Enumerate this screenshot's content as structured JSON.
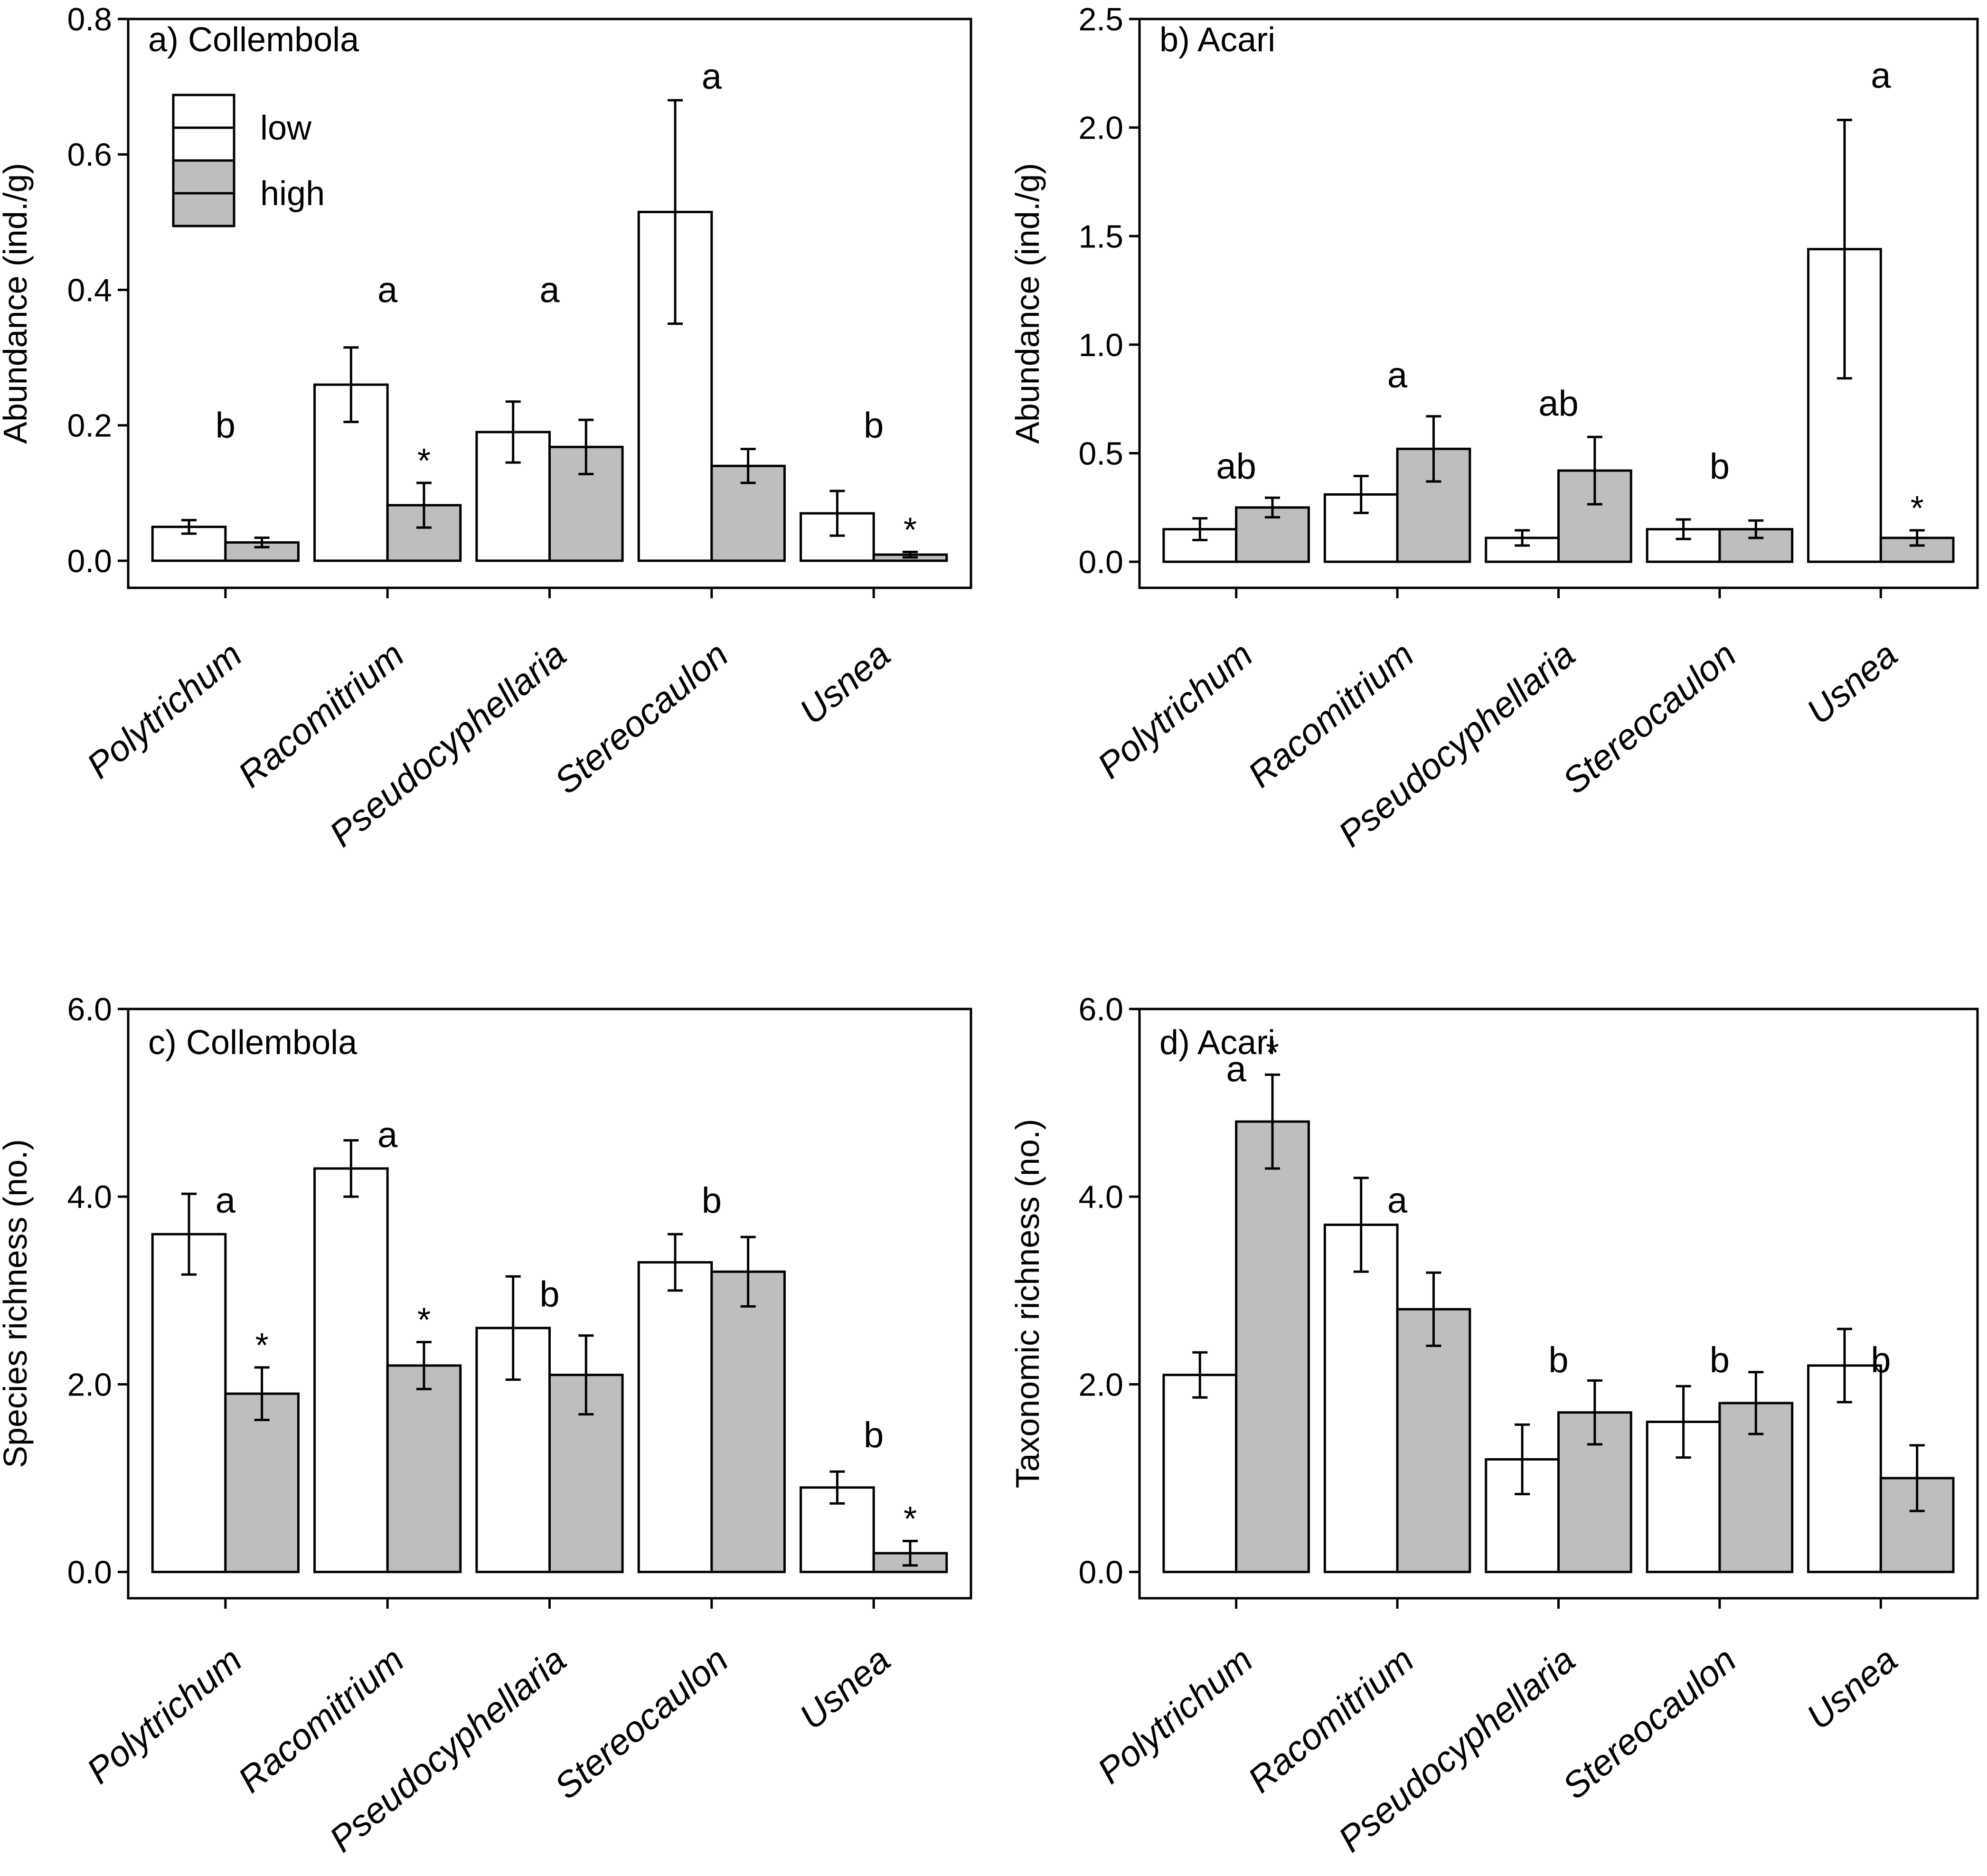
{
  "chart_data": [
    {
      "type": "bar",
      "title": "a) Collembola",
      "xlabel": "",
      "ylabel": "Abundance (ind./g)",
      "ylim": [
        -0.04,
        0.8
      ],
      "yticks": [
        0.0,
        0.2,
        0.4,
        0.6,
        0.8
      ],
      "tick_decimals": 1,
      "categories": [
        "Polytrichum",
        "Racomitrium",
        "Pseudocyphellaria",
        "Stereocaulon",
        "Usnea"
      ],
      "series": [
        {
          "name": "low",
          "values": [
            0.05,
            0.26,
            0.19,
            0.515,
            0.07
          ],
          "errors": [
            0.01,
            0.055,
            0.045,
            0.165,
            0.033
          ]
        },
        {
          "name": "high",
          "values": [
            0.027,
            0.082,
            0.168,
            0.14,
            0.009
          ],
          "errors": [
            0.007,
            0.033,
            0.04,
            0.025,
            0.004
          ]
        }
      ],
      "letters": [
        {
          "text": "b",
          "y": 0.2
        },
        {
          "text": "a",
          "y": 0.4
        },
        {
          "text": "a",
          "y": 0.4
        },
        {
          "text": "a",
          "y": 0.715
        },
        {
          "text": "b",
          "y": 0.2
        }
      ],
      "stars": [
        "",
        "*",
        "",
        "",
        "*"
      ],
      "legend": {
        "entries": [
          "low",
          "high"
        ],
        "position": "top-left"
      }
    },
    {
      "type": "bar",
      "title": "b) Acari",
      "xlabel": "",
      "ylabel": "Abundance (ind./g)",
      "ylim": [
        -0.12,
        2.5
      ],
      "yticks": [
        0.0,
        0.5,
        1.0,
        1.5,
        2.0,
        2.5
      ],
      "tick_decimals": 1,
      "categories": [
        "Polytrichum",
        "Racomitrium",
        "Pseudocyphellaria",
        "Stereocaulon",
        "Usnea"
      ],
      "series": [
        {
          "name": "low",
          "values": [
            0.15,
            0.31,
            0.11,
            0.15,
            1.44
          ],
          "errors": [
            0.05,
            0.085,
            0.035,
            0.045,
            0.595
          ]
        },
        {
          "name": "high",
          "values": [
            0.25,
            0.52,
            0.42,
            0.15,
            0.11
          ],
          "errors": [
            0.045,
            0.15,
            0.155,
            0.04,
            0.035
          ]
        }
      ],
      "letters": [
        {
          "text": "ab",
          "y": 0.44
        },
        {
          "text": "a",
          "y": 0.86
        },
        {
          "text": "ab",
          "y": 0.73
        },
        {
          "text": "b",
          "y": 0.44
        },
        {
          "text": "a",
          "y": 2.24
        }
      ],
      "stars": [
        "",
        "",
        "",
        "",
        "*"
      ]
    },
    {
      "type": "bar",
      "title": "c) Collembola",
      "xlabel": "",
      "ylabel": "Species richness (no.)",
      "ylim": [
        -0.28,
        6.0
      ],
      "yticks": [
        0.0,
        2.0,
        4.0,
        6.0
      ],
      "tick_decimals": 1,
      "categories": [
        "Polytrichum",
        "Racomitrium",
        "Pseudocyphellaria",
        "Stereocaulon",
        "Usnea"
      ],
      "series": [
        {
          "name": "low",
          "values": [
            3.6,
            4.3,
            2.6,
            3.3,
            0.9
          ],
          "errors": [
            0.43,
            0.3,
            0.55,
            0.3,
            0.17
          ]
        },
        {
          "name": "high",
          "values": [
            1.9,
            2.2,
            2.1,
            3.2,
            0.2
          ],
          "errors": [
            0.28,
            0.25,
            0.42,
            0.37,
            0.13
          ]
        }
      ],
      "letters": [
        {
          "text": "a",
          "y": 3.96
        },
        {
          "text": "a",
          "y": 4.66
        },
        {
          "text": "b",
          "y": 2.96
        },
        {
          "text": "b",
          "y": 3.96
        },
        {
          "text": "b",
          "y": 1.46
        }
      ],
      "stars": [
        "*",
        "*",
        "",
        "",
        "*"
      ]
    },
    {
      "type": "bar",
      "title": "d) Acari",
      "xlabel": "",
      "ylabel": "Taxonomic richness (no.)",
      "ylim": [
        -0.28,
        6.0
      ],
      "yticks": [
        0.0,
        2.0,
        4.0,
        6.0
      ],
      "tick_decimals": 1,
      "categories": [
        "Polytrichum",
        "Racomitrium",
        "Pseudocyphellaria",
        "Stereocaulon",
        "Usnea"
      ],
      "series": [
        {
          "name": "low",
          "values": [
            2.1,
            3.7,
            1.2,
            1.6,
            2.2
          ],
          "errors": [
            0.24,
            0.5,
            0.37,
            0.38,
            0.39
          ]
        },
        {
          "name": "high",
          "values": [
            4.8,
            2.8,
            1.7,
            1.8,
            1.0
          ],
          "errors": [
            0.5,
            0.39,
            0.34,
            0.33,
            0.35
          ]
        }
      ],
      "letters": [
        {
          "text": "a",
          "y": 5.36
        },
        {
          "text": "a",
          "y": 3.96
        },
        {
          "text": "b",
          "y": 2.26
        },
        {
          "text": "b",
          "y": 2.26
        },
        {
          "text": "b",
          "y": 2.26
        }
      ],
      "stars": [
        "*",
        "",
        "",
        "",
        ""
      ]
    }
  ],
  "colors": {
    "low": "#ffffff",
    "high": "#bebebe",
    "stroke": "#000000"
  }
}
